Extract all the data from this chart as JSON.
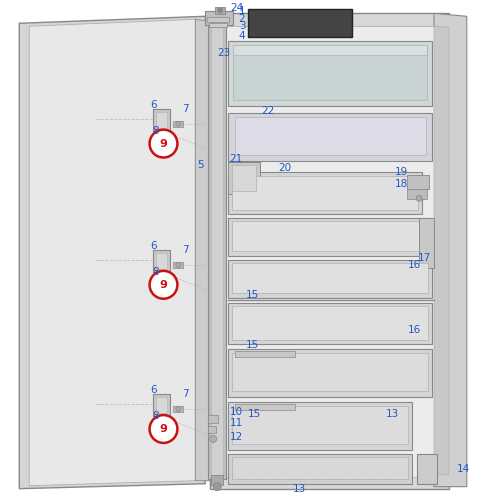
{
  "bg_color": "#ffffff",
  "label_color": "#2255cc",
  "red_circle_color": "#cc1111",
  "sketch_light": "#c8c8c8",
  "sketch_mid": "#b0b0b0",
  "sketch_dark": "#888888",
  "sketch_darkest": "#555555",
  "inner_fill": "#e8e8e8",
  "basket_fill": "#d8d8d8",
  "door_fill": "#e0e0e0",
  "fridge_inner": "#dcdcdc",
  "figsize": [
    5.0,
    5.0
  ],
  "dpi": 100
}
